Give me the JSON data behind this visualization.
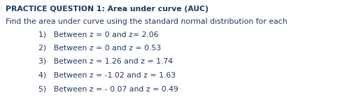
{
  "title": "PRACTICE QUESTION 1: Area under curve (AUC)",
  "subtitle": "Find the area under curve using the standard normal distribution for each",
  "items": [
    "1)   Between z = 0 and z= 2.06",
    "2)   Between z = 0 and z = 0.53",
    "3)   Between z = 1.26 and z = 1.74",
    "4)   Between z = -1.02 and z = 1.63",
    "5)   Between z = - 0.07 and z = 0.49"
  ],
  "background_color": "#ffffff",
  "title_color": "#1f3864",
  "text_color": "#1f3864",
  "title_fontsize": 7.8,
  "body_fontsize": 7.8,
  "item_fontsize": 7.8,
  "fig_width": 4.86,
  "fig_height": 1.46,
  "dpi": 100
}
